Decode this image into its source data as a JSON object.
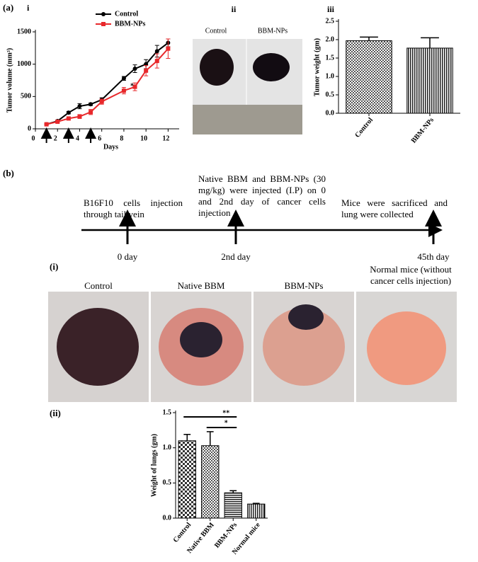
{
  "panels": {
    "a": "(a)",
    "a_i": "i",
    "a_ii": "ii",
    "a_iii": "iii",
    "b": "(b)",
    "b_i": "(i)",
    "b_ii": "(ii)"
  },
  "photo_labels_a": [
    "Control",
    "BBM-NPs"
  ],
  "timeline": {
    "events": [
      "B16F10 cells injection through tail vein",
      "Native BBM and BBM-NPs (30 mg/kg) were injected (I.P) on 0 and 2nd day of cancer cells injection",
      "Mice were sacrificed and lung were collected"
    ],
    "days": [
      "0 day",
      "2nd day",
      "45th day"
    ]
  },
  "photo_labels_b": [
    "Control",
    "Native BBM",
    "BBM-NPs",
    "Normal mice (without cancer cells injection)"
  ],
  "chart_data": [
    {
      "type": "line",
      "xlabel": "Days",
      "ylabel": "Tumor volume (mm³)",
      "x": [
        1,
        2,
        3,
        4,
        5,
        6,
        8,
        9,
        10,
        11,
        12
      ],
      "series": [
        {
          "name": "Control",
          "color": "#000000",
          "marker": "circle",
          "values": [
            70,
            120,
            250,
            350,
            380,
            450,
            780,
            930,
            1000,
            1200,
            1330
          ],
          "errors": [
            10,
            15,
            20,
            40,
            20,
            30,
            30,
            60,
            70,
            90,
            60
          ]
        },
        {
          "name": "BBM-NPs",
          "color": "#e8282b",
          "marker": "square",
          "values": [
            70,
            110,
            160,
            190,
            260,
            420,
            590,
            650,
            900,
            1050,
            1240
          ],
          "errors": [
            10,
            15,
            20,
            30,
            40,
            40,
            50,
            60,
            80,
            110,
            150
          ]
        }
      ],
      "xlim": [
        0,
        13
      ],
      "xticks": [
        0,
        2,
        4,
        6,
        8,
        10,
        12
      ],
      "ylim": [
        0,
        1500
      ],
      "yticks": [
        0,
        500,
        1000,
        1500
      ],
      "legend": "top-left",
      "annotations": [
        "*"
      ]
    },
    {
      "type": "bar",
      "ylabel": "Tumor weight (gm)",
      "categories": [
        "Control",
        "BBM-NPs"
      ],
      "values": [
        1.97,
        1.77
      ],
      "errors": [
        0.1,
        0.28
      ],
      "ylim": [
        0,
        2.5
      ],
      "yticks": [
        {
          "value": 0,
          "label": "0.0"
        },
        0.5,
        {
          "value": 1,
          "label": "1.0"
        },
        1.5,
        {
          "value": 2,
          "label": "2.0"
        },
        2.5
      ]
    },
    {
      "type": "bar",
      "ylabel": "Weight of lungs (gm)",
      "categories": [
        "Control",
        "Native BBM",
        "BBM-NPs",
        "Normal mice"
      ],
      "values": [
        1.1,
        1.03,
        0.36,
        0.2
      ],
      "errors": [
        0.09,
        0.2,
        0.03,
        0.01
      ],
      "ylim": [
        0,
        1.5
      ],
      "yticks": [
        {
          "value": 0,
          "label": "0.0"
        },
        0.5,
        {
          "value": 1,
          "label": "1.0"
        },
        1.5
      ],
      "annotations": [
        "**",
        "*"
      ]
    }
  ]
}
